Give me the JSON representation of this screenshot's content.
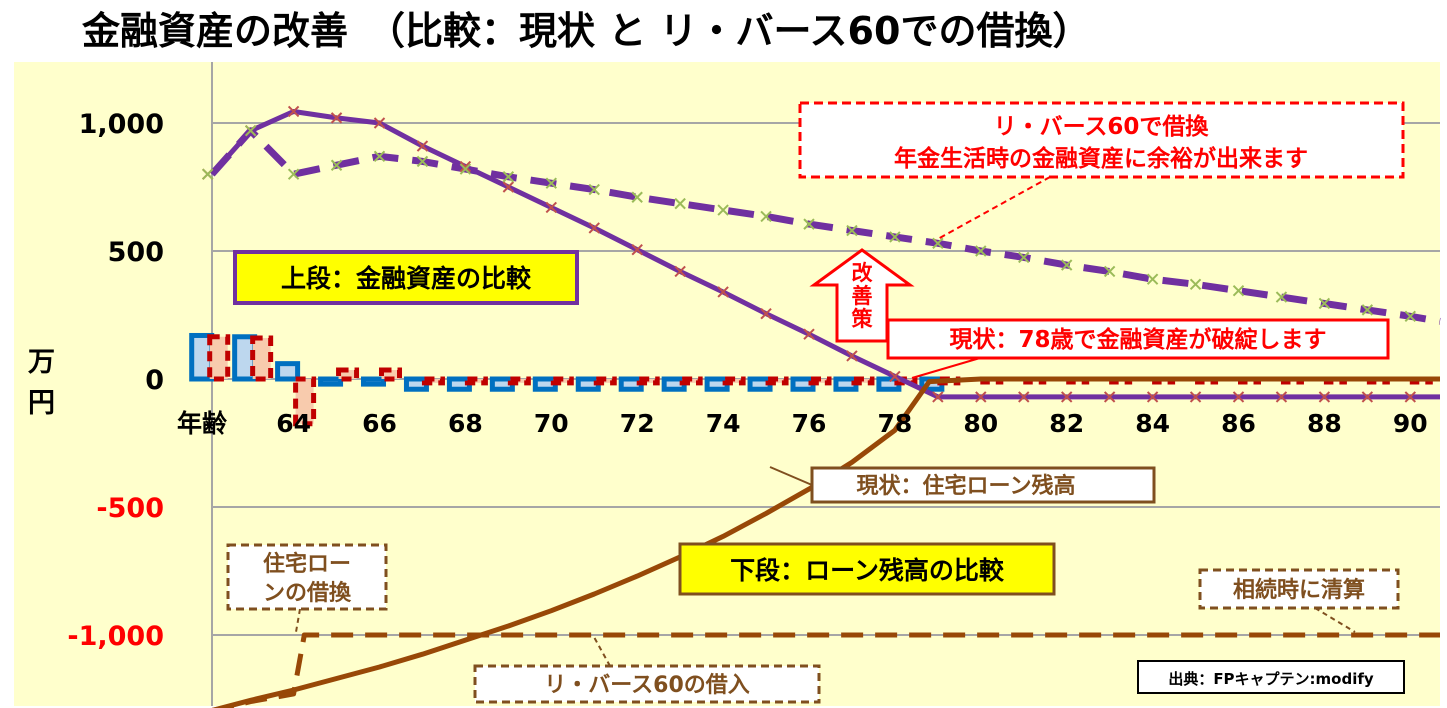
{
  "title": "金融資産の改善　（比較：現状 と リ・バース60での借換）",
  "source": "出典：FPキャプテン:modify",
  "chart_data": {
    "type": "line",
    "title": "金融資産の改善　（比較：現状 と リ・バース60での借換）",
    "ylabel": "万円",
    "xlabel": "年齢",
    "xlim": [
      62.1,
      91
    ],
    "ylim": [
      -1280,
      1230
    ],
    "yticks": [
      {
        "value": 1000,
        "label": "1,000"
      },
      {
        "value": 500,
        "label": "500"
      },
      {
        "value": 0,
        "label": "0"
      },
      {
        "value": -500,
        "label": "-500"
      },
      {
        "value": -1000,
        "label": "-1,000"
      }
    ],
    "xticks": [
      "64",
      "66",
      "68",
      "70",
      "72",
      "74",
      "76",
      "78",
      "80",
      "82",
      "84",
      "86",
      "88",
      "90"
    ],
    "colors": {
      "plot_bg": "#ffffcc",
      "grid": "#a6a6a6",
      "status_quo_assets": "#7030a0",
      "reverse60_assets": "#7030a0",
      "marker_cross": "#c0504d",
      "marker_cross_alt": "#9bbb59",
      "loan": "#984807",
      "bar_blue": "#0070c0",
      "bar_red": "#c00000",
      "annotation_red": "#ff0000",
      "annotation_brown": "#7f4f1f",
      "negative_label": "#ff0000"
    },
    "series": [
      {
        "style": "solid",
        "x": [
          62,
          63,
          64,
          65,
          66,
          67,
          68,
          69,
          70,
          71,
          72,
          73,
          74,
          75,
          76,
          77,
          78,
          79,
          80,
          81,
          82,
          83,
          84,
          85,
          86,
          87,
          88,
          89,
          90,
          91
        ],
        "values": [
          800,
          970,
          1045,
          1020,
          1000,
          910,
          830,
          750,
          670,
          590,
          505,
          420,
          340,
          255,
          175,
          90,
          10,
          -70,
          -70,
          -70,
          -70,
          -70,
          -70,
          -70,
          -70,
          -70,
          -70,
          -70,
          -70,
          -70
        ]
      },
      {
        "style": "dashed",
        "x": [
          62,
          63,
          64,
          65,
          66,
          67,
          68,
          69,
          70,
          71,
          72,
          73,
          74,
          75,
          76,
          77,
          78,
          79,
          80,
          81,
          82,
          83,
          84,
          85,
          86,
          87,
          88,
          89,
          90,
          91
        ],
        "values": [
          800,
          970,
          800,
          835,
          870,
          850,
          820,
          790,
          765,
          740,
          710,
          685,
          660,
          635,
          605,
          580,
          555,
          530,
          500,
          475,
          445,
          420,
          390,
          370,
          345,
          320,
          295,
          270,
          245,
          225
        ]
      },
      {
        "style": "solid",
        "x": [
          62,
          63,
          64,
          65,
          66,
          67,
          68,
          69,
          70,
          71,
          72,
          73,
          74,
          75,
          76,
          77,
          78,
          78.8,
          80,
          91
        ],
        "values": [
          -1295,
          -1255,
          -1215,
          -1170,
          -1125,
          -1075,
          -1020,
          -965,
          -905,
          -840,
          -770,
          -695,
          -615,
          -525,
          -430,
          -325,
          -200,
          -10,
          0,
          0
        ]
      },
      {
        "style": "dashed",
        "x": [
          62,
          63,
          64,
          64.25,
          66,
          91
        ],
        "values": [
          -1295,
          -1260,
          -1230,
          -1000,
          -1000,
          -1000
        ]
      }
    ],
    "bars": {
      "x": [
        62,
        63,
        64,
        65,
        66,
        67,
        68,
        69,
        70,
        71,
        72,
        73,
        74,
        75,
        76,
        77,
        78,
        79,
        80,
        81,
        82,
        83,
        84,
        85,
        86,
        87,
        88,
        89,
        90
      ],
      "status_quo": [
        170,
        165,
        60,
        -20,
        -20,
        -40,
        -40,
        -40,
        -40,
        -40,
        -40,
        -40,
        -40,
        -40,
        -40,
        -40,
        -40,
        -40,
        0,
        0,
        0,
        0,
        0,
        0,
        0,
        0,
        0,
        0,
        0
      ],
      "reverse60": [
        165,
        160,
        -175,
        35,
        35,
        -15,
        -15,
        -15,
        -15,
        -15,
        -15,
        -15,
        -15,
        -15,
        -15,
        -15,
        -15,
        -15,
        -10,
        -10,
        -10,
        -10,
        -10,
        -10,
        -10,
        -10,
        -10,
        -10,
        -10
      ]
    },
    "annotations": {
      "reverse_callout": [
        "リ・バース60で借換",
        "年金生活時の金融資産に余裕が出来ます"
      ],
      "upper_box": "上段：金融資産の比較",
      "improvement_arrow": [
        "改",
        "善",
        "策"
      ],
      "status_quo_callout": "現状：78歳で金融資産が破綻します",
      "loan_callout": "現状：住宅ローン残高",
      "lower_box": "下段：ローン残高の比較",
      "refinance_box": [
        "住宅ロー",
        "ンの借換"
      ],
      "settlement_box": "相続時に清算",
      "borrow_box": "リ・バース60の借入"
    }
  }
}
